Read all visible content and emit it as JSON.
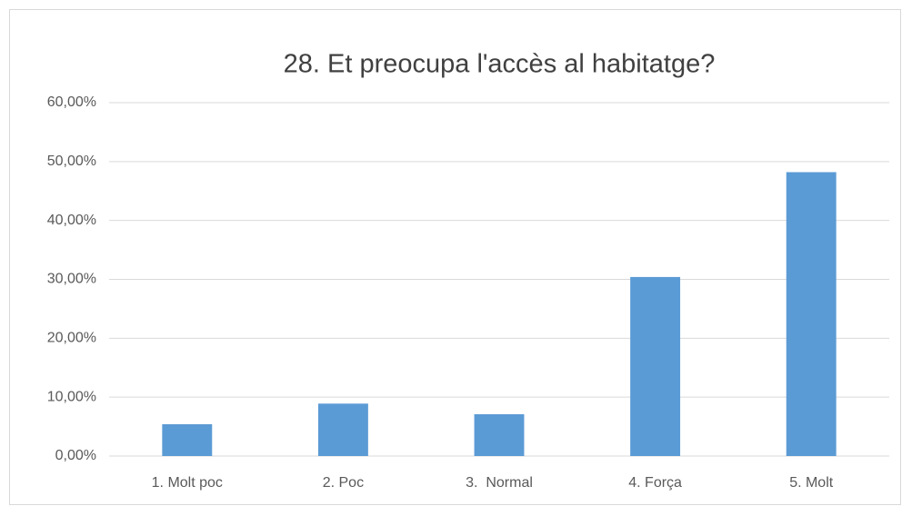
{
  "chart_data": {
    "type": "bar",
    "title": "28. Et preocupa l'accès al habitatge?",
    "categories": [
      "1. Molt poc",
      "2. Poc",
      "3.  Normal",
      "4. Força",
      "5. Molt"
    ],
    "values": [
      5.4,
      8.9,
      7.1,
      30.4,
      48.2
    ],
    "color": "#5b9bd5",
    "ylim": [
      0,
      60
    ],
    "yticks": [
      {
        "value": 0,
        "label": "0,00%"
      },
      {
        "value": 10,
        "label": "10,00%"
      },
      {
        "value": 20,
        "label": "20,00%"
      },
      {
        "value": 30,
        "label": "30,00%"
      },
      {
        "value": 40,
        "label": "40,00%"
      },
      {
        "value": 50,
        "label": "50,00%"
      },
      {
        "value": 60,
        "label": "60,00%"
      }
    ],
    "grid": true
  }
}
